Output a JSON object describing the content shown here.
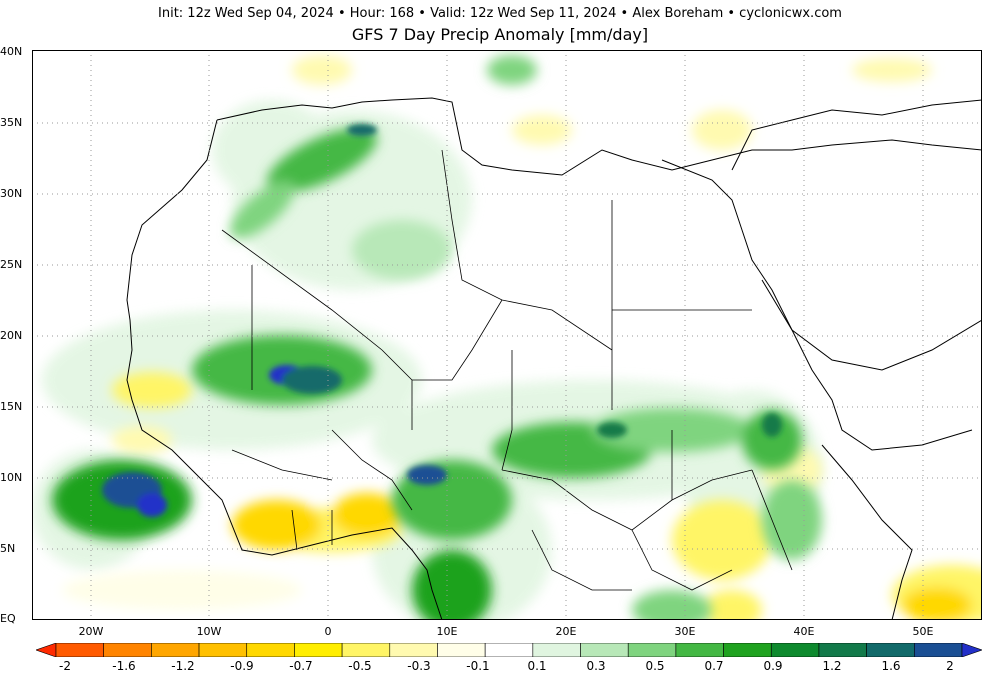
{
  "header": {
    "info": "Init: 12z Wed Sep 04, 2024 • Hour: 168 • Valid: 12z Wed Sep 11, 2024 • Alex Boreham • cyclonicwx.com",
    "title": "GFS 7 Day Precip Anomaly [mm/day]"
  },
  "map": {
    "lat_labels": [
      "EQ",
      "5N",
      "10N",
      "15N",
      "20N",
      "25N",
      "30N",
      "35N",
      "40N"
    ],
    "lon_labels": [
      "20W",
      "10W",
      "0",
      "10E",
      "20E",
      "30E",
      "40E",
      "50E"
    ],
    "grid": true,
    "projection": "cylindrical"
  },
  "colorbar": {
    "labels": [
      "-2",
      "-1.6",
      "-1.2",
      "-0.9",
      "-0.7",
      "-0.5",
      "-0.3",
      "-0.1",
      "0.1",
      "0.3",
      "0.5",
      "0.7",
      "0.9",
      "1.2",
      "1.6",
      "2"
    ],
    "colors": [
      "#ff2a00",
      "#ff5a00",
      "#ff8400",
      "#ffa600",
      "#ffc000",
      "#ffd800",
      "#ffee00",
      "#fff566",
      "#fffab0",
      "#fffee8",
      "#ffffff",
      "#e0f5e0",
      "#b8e8b8",
      "#7fd47f",
      "#44b844",
      "#1fa21f",
      "#0e8a2e",
      "#127a4a",
      "#136b6b",
      "#1a4f94",
      "#2230c8"
    ],
    "extend": "both"
  }
}
